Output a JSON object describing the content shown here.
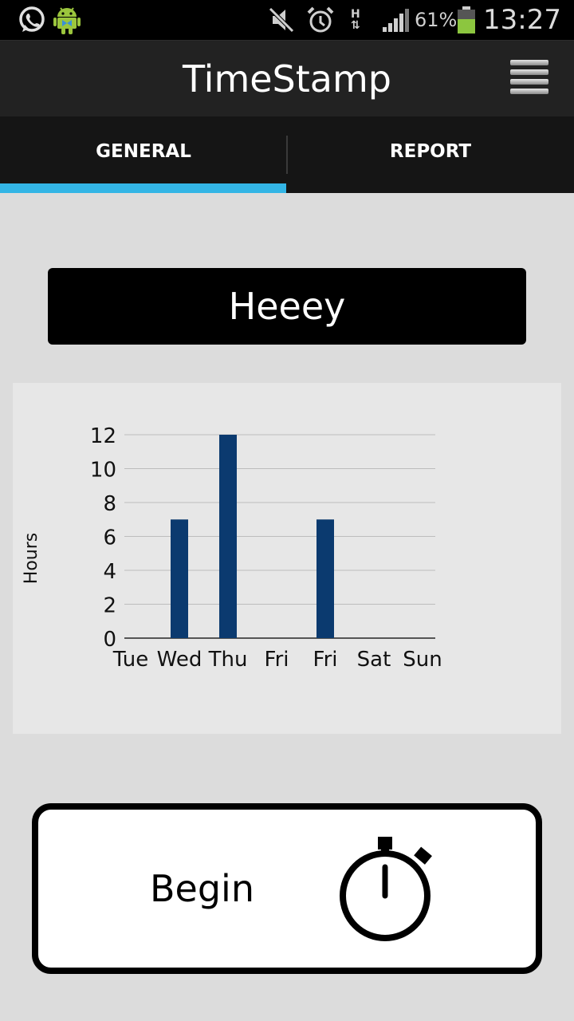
{
  "status_bar": {
    "battery": "61%",
    "time": "13:27",
    "network": "H",
    "icons": [
      "whatsapp-icon",
      "android-icon",
      "mute-icon",
      "alarm-icon",
      "hspa-icon",
      "signal-icon",
      "battery-icon"
    ]
  },
  "app": {
    "title": "TimeStamp",
    "menu_icon": "menu-icon"
  },
  "tabs": [
    {
      "label": "GENERAL",
      "selected": true
    },
    {
      "label": "REPORT",
      "selected": false
    }
  ],
  "colors": {
    "tab_indicator": "#33b5e5",
    "bar": "#0b3a6f",
    "chart_bg": "#e7e7e7",
    "page_bg": "#dcdcdc"
  },
  "message": "Heeey",
  "chart_data": {
    "type": "bar",
    "categories": [
      "Tue",
      "Wed",
      "Thu",
      "Fri",
      "Fri",
      "Sat",
      "Sun"
    ],
    "values": [
      0,
      7,
      12,
      0,
      7,
      0,
      0
    ],
    "ylabel": "Hours",
    "ylim": [
      0,
      12
    ],
    "yticks": [
      0,
      2,
      4,
      6,
      8,
      10,
      12
    ],
    "grid": true
  },
  "begin_button": {
    "label": "Begin",
    "icon": "stopwatch-icon"
  }
}
